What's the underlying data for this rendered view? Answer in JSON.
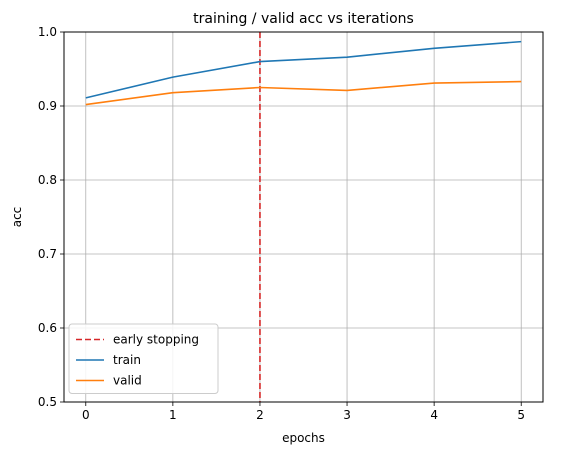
{
  "chart_data": {
    "type": "line",
    "title": "training / valid acc vs iterations",
    "xlabel": "epochs",
    "ylabel": "acc",
    "xlim": [
      -0.25,
      5.25
    ],
    "ylim": [
      0.5,
      1.0
    ],
    "xticks": [
      0,
      1,
      2,
      3,
      4,
      5
    ],
    "yticks": [
      0.5,
      0.6,
      0.7,
      0.8,
      0.9,
      1.0
    ],
    "xtick_labels": [
      "0",
      "1",
      "2",
      "3",
      "4",
      "5"
    ],
    "ytick_labels": [
      "0.5",
      "0.6",
      "0.7",
      "0.8",
      "0.9",
      "1.0"
    ],
    "grid": true,
    "legend_position": "lower-left",
    "x": [
      0,
      1,
      2,
      3,
      4,
      5
    ],
    "series": [
      {
        "name": "train",
        "color": "#1f77b4",
        "values": [
          0.911,
          0.939,
          0.96,
          0.966,
          0.978,
          0.987
        ]
      },
      {
        "name": "valid",
        "color": "#ff7f0e",
        "values": [
          0.902,
          0.918,
          0.925,
          0.921,
          0.931,
          0.933
        ]
      }
    ],
    "vlines": [
      {
        "name": "early stopping",
        "x": 2,
        "color": "#d62728",
        "style": "dashed"
      }
    ]
  }
}
